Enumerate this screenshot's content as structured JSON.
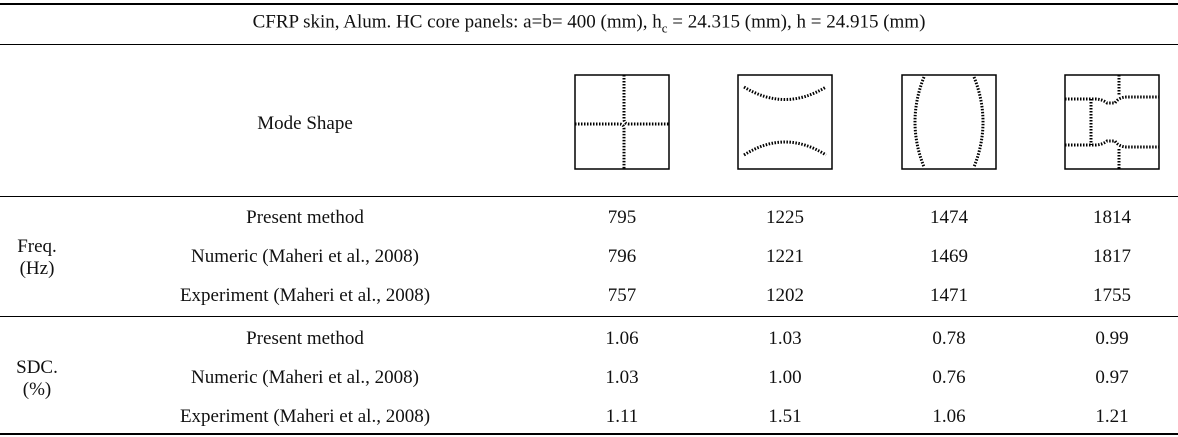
{
  "table": {
    "caption": [
      "CFRP skin, Alum. HC core panels: a=b= 400 (mm), h",
      "c",
      " = 24.315 (mm), h = 24.915 (mm)"
    ],
    "header": "Mode Shape",
    "groups": [
      {
        "label": [
          "Freq.",
          "(Hz)"
        ],
        "rows": [
          {
            "method": "Present method",
            "values": [
              "795",
              "1225",
              "1474",
              "1814"
            ]
          },
          {
            "method": "Numeric (Maheri et al., 2008)",
            "values": [
              "796",
              "1221",
              "1469",
              "1817"
            ]
          },
          {
            "method": "Experiment (Maheri et al., 2008)",
            "values": [
              "757",
              "1202",
              "1471",
              "1755"
            ]
          }
        ]
      },
      {
        "label": [
          "SDC.",
          "(%)"
        ],
        "rows": [
          {
            "method": "Present method",
            "values": [
              "1.06",
              "1.03",
              "0.78",
              "0.99"
            ]
          },
          {
            "method": "Numeric (Maheri et al., 2008)",
            "values": [
              "1.03",
              "1.00",
              "0.76",
              "0.97"
            ]
          },
          {
            "method": "Experiment (Maheri et al., 2008)",
            "values": [
              "1.11",
              "1.51",
              "1.06",
              "1.21"
            ]
          }
        ]
      }
    ]
  }
}
